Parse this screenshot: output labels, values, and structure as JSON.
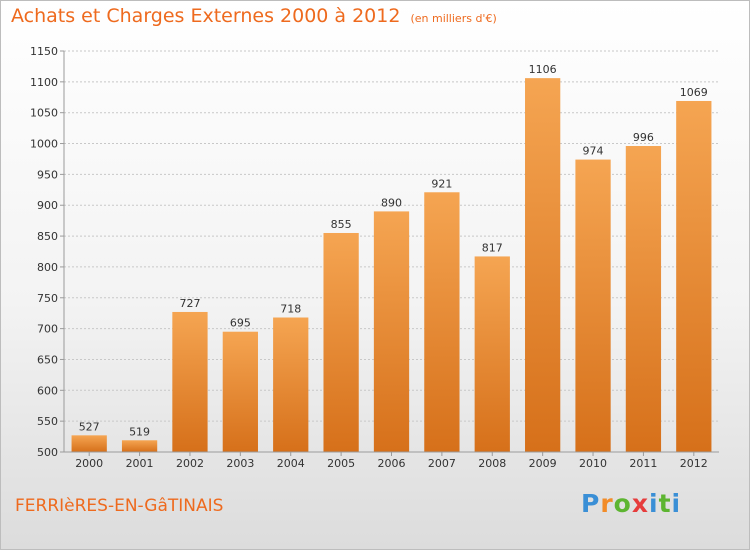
{
  "title": "Achats et Charges Externes 2000 à 2012",
  "unit_note": "(en milliers d'€)",
  "commune": "FERRIèRES-EN-GâTINAIS",
  "logo": {
    "letters": [
      "P",
      "r",
      "o",
      "x",
      "i",
      "t",
      "i"
    ],
    "colors": [
      "#3a8fd6",
      "#f28c28",
      "#5db531",
      "#e63c3c",
      "#3a8fd6",
      "#5db531",
      "#3a8fd6"
    ]
  },
  "colors": {
    "bar_top": "#f5a552",
    "bar_bottom": "#d6701a",
    "grid": "#c8c8c8",
    "title": "#ee6a1e"
  },
  "chart_data": {
    "type": "bar",
    "title": "Achats et Charges Externes 2000 à 2012",
    "xlabel": "",
    "ylabel": "(en milliers d'€)",
    "categories": [
      "2000",
      "2001",
      "2002",
      "2003",
      "2004",
      "2005",
      "2006",
      "2007",
      "2008",
      "2009",
      "2010",
      "2011",
      "2012"
    ],
    "values": [
      527,
      519,
      727,
      695,
      718,
      855,
      890,
      921,
      817,
      1106,
      974,
      996,
      1069
    ],
    "ylim": [
      500,
      1150
    ],
    "yticks": [
      500,
      550,
      600,
      650,
      700,
      750,
      800,
      850,
      900,
      950,
      1000,
      1050,
      1100,
      1150
    ],
    "grid": true,
    "legend": "none"
  }
}
